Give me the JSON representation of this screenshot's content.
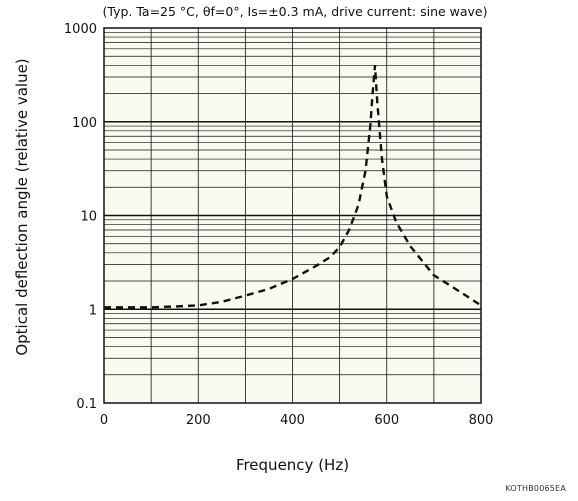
{
  "chart_data": {
    "type": "line",
    "conditions": "(Typ. Ta=25 °C, θf=0°, Is=±0.3 mA, drive current: sine wave)",
    "xlabel": "Frequency (Hz)",
    "ylabel": "Optical deflection angle (relative value)",
    "xlim": [
      0,
      800
    ],
    "ylim": [
      0.1,
      1000
    ],
    "yscale": "log",
    "grid": true,
    "x_ticks": [
      "0",
      "200",
      "400",
      "600",
      "800"
    ],
    "y_ticks": [
      "0.1",
      "1",
      "10",
      "100",
      "1000"
    ],
    "series": [
      {
        "style": "dashed",
        "x": [
          0,
          100,
          150,
          200,
          250,
          300,
          350,
          400,
          450,
          480,
          500,
          520,
          540,
          555,
          565,
          570,
          575,
          580,
          590,
          600,
          620,
          650,
          700,
          750,
          800
        ],
        "y": [
          1.05,
          1.05,
          1.07,
          1.1,
          1.2,
          1.4,
          1.65,
          2.1,
          2.9,
          3.6,
          4.6,
          7,
          13,
          30,
          90,
          200,
          400,
          160,
          40,
          16,
          8.5,
          4.7,
          2.3,
          1.6,
          1.1
        ]
      }
    ]
  },
  "figure_code": "KOTHB0065EA"
}
